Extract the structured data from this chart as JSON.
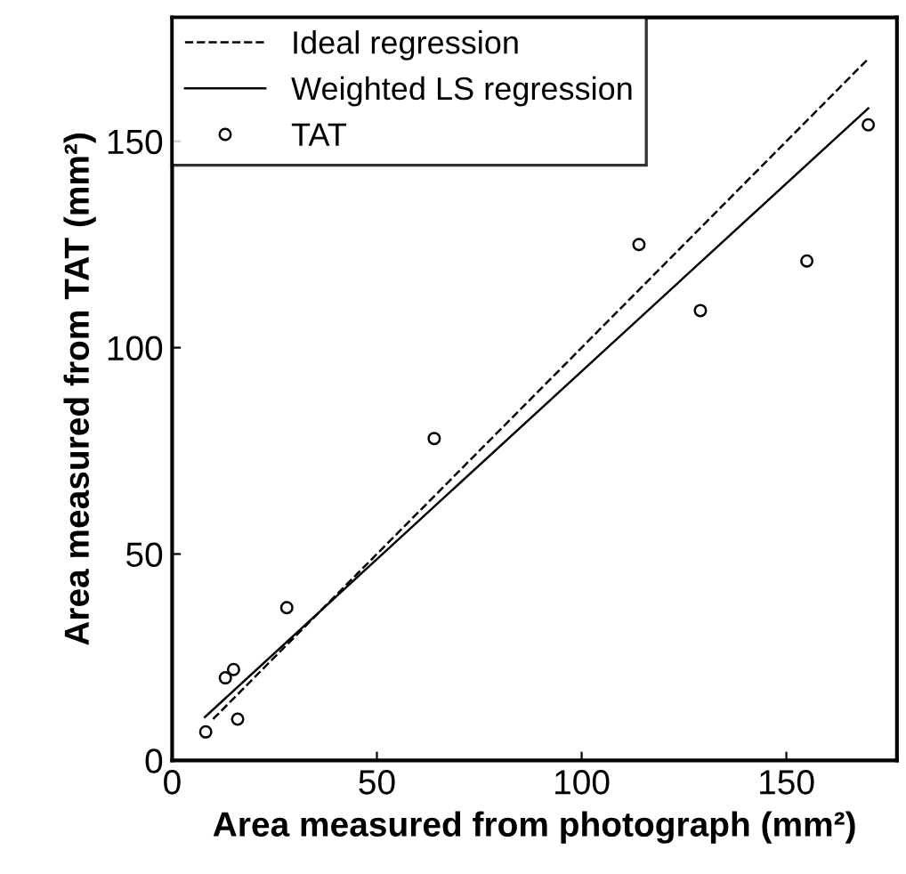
{
  "chart_data": {
    "type": "scatter",
    "xlabel": "Area measured from photograph (mm²)",
    "ylabel": "Area measured from TAT (mm²)",
    "xlim": [
      0,
      177
    ],
    "ylim": [
      0,
      180
    ],
    "xticks": [
      0,
      50,
      100,
      150
    ],
    "yticks": [
      0,
      50,
      100,
      150
    ],
    "grid": false,
    "legend": "top left",
    "series": [
      {
        "name": "Ideal regression",
        "type": "line",
        "color": "#000000",
        "line_style": "dashed",
        "marker": "none",
        "x": [
          10,
          170
        ],
        "values": [
          10,
          170
        ]
      },
      {
        "name": "Weighted LS regression",
        "type": "line",
        "color": "#000000",
        "line_style": "solid",
        "marker": "none",
        "x": [
          8,
          170
        ],
        "values": [
          10.5,
          158
        ]
      },
      {
        "name": "TAT",
        "color": "#000000",
        "marker": "circle",
        "x": [
          8.2,
          13,
          15,
          16,
          28,
          64,
          114,
          129,
          155,
          170
        ],
        "values": [
          6.9,
          20,
          22,
          10,
          37,
          78,
          125,
          109,
          121,
          154
        ]
      }
    ]
  }
}
